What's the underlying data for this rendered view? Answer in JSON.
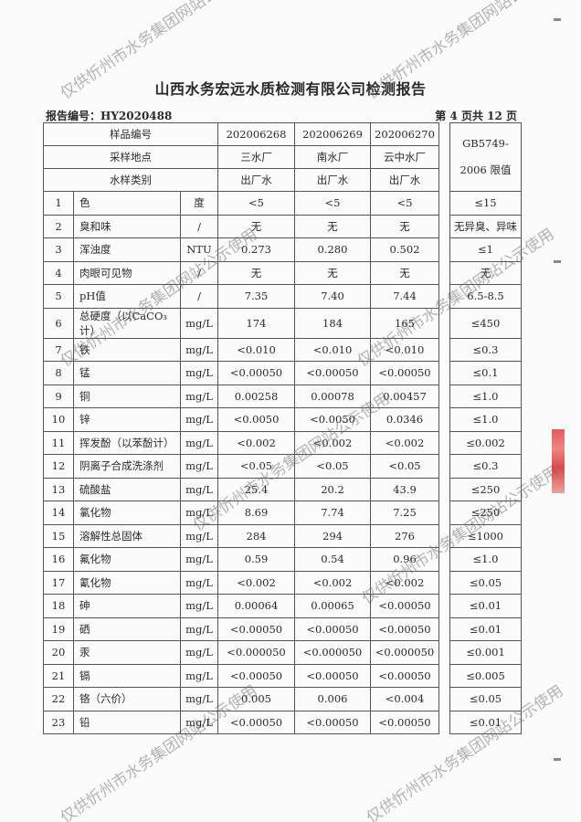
{
  "title": "山西水务宏远水质检测有限公司检测报告",
  "report_no": "报告编号：HY2020488",
  "page_info": "第 4 页共 12 页",
  "header": {
    "sample_no_label": "样品编号",
    "location_label": "采样地点",
    "type_label": "水样类别",
    "samples": [
      {
        "no": "202006268",
        "location": "三水厂",
        "type": "出厂水"
      },
      {
        "no": "202006269",
        "location": "南水厂",
        "type": "出厂水"
      },
      {
        "no": "202006270",
        "location": "云中水厂",
        "type": "出厂水"
      }
    ],
    "limit_label_1": "GB5749-",
    "limit_label_2": "2006 限值"
  },
  "rows": [
    {
      "n": "1",
      "name": "色",
      "unit": "度",
      "v": [
        "<5",
        "<5",
        "<5"
      ],
      "limit": "≤15"
    },
    {
      "n": "2",
      "name": "臭和味",
      "unit": "/",
      "v": [
        "无",
        "无",
        "无"
      ],
      "limit": "无异臭、异味"
    },
    {
      "n": "3",
      "name": "浑浊度",
      "unit": "NTU",
      "v": [
        "0.273",
        "0.280",
        "0.502"
      ],
      "limit": "≤1"
    },
    {
      "n": "4",
      "name": "肉眼可见物",
      "unit": "/",
      "v": [
        "无",
        "无",
        "无"
      ],
      "limit": "无"
    },
    {
      "n": "5",
      "name": "pH值",
      "unit": "/",
      "v": [
        "7.35",
        "7.40",
        "7.44"
      ],
      "limit": "6.5-8.5"
    },
    {
      "n": "6",
      "name": "总硬度（以CaCO₃计）",
      "unit": "mg/L",
      "v": [
        "174",
        "184",
        "165"
      ],
      "limit": "≤450"
    },
    {
      "n": "7",
      "name": "铁",
      "unit": "mg/L",
      "v": [
        "<0.010",
        "<0.010",
        "<0.010"
      ],
      "limit": "≤0.3"
    },
    {
      "n": "8",
      "name": "锰",
      "unit": "mg/L",
      "v": [
        "<0.00050",
        "<0.00050",
        "<0.00050"
      ],
      "limit": "≤0.1"
    },
    {
      "n": "9",
      "name": "铜",
      "unit": "mg/L",
      "v": [
        "0.00258",
        "0.00078",
        "0.00457"
      ],
      "limit": "≤1.0"
    },
    {
      "n": "10",
      "name": "锌",
      "unit": "mg/L",
      "v": [
        "<0.0050",
        "<0.0050",
        "0.0346"
      ],
      "limit": "≤1.0"
    },
    {
      "n": "11",
      "name": "挥发酚（以苯酚计）",
      "unit": "mg/L",
      "v": [
        "<0.002",
        "<0.002",
        "<0.002"
      ],
      "limit": "≤0.002"
    },
    {
      "n": "12",
      "name": "阴离子合成洗涤剂",
      "unit": "mg/L",
      "v": [
        "<0.05",
        "<0.05",
        "<0.05"
      ],
      "limit": "≤0.3"
    },
    {
      "n": "13",
      "name": "硫酸盐",
      "unit": "mg/L",
      "v": [
        "25.4",
        "20.2",
        "43.9"
      ],
      "limit": "≤250"
    },
    {
      "n": "14",
      "name": "氯化物",
      "unit": "mg/L",
      "v": [
        "8.69",
        "7.74",
        "7.25"
      ],
      "limit": "≤250"
    },
    {
      "n": "15",
      "name": "溶解性总固体",
      "unit": "mg/L",
      "v": [
        "284",
        "294",
        "276"
      ],
      "limit": "≤1000"
    },
    {
      "n": "16",
      "name": "氟化物",
      "unit": "mg/L",
      "v": [
        "0.59",
        "0.54",
        "0.96"
      ],
      "limit": "≤1.0"
    },
    {
      "n": "17",
      "name": "氰化物",
      "unit": "mg/L",
      "v": [
        "<0.002",
        "<0.002",
        "<0.002"
      ],
      "limit": "≤0.05"
    },
    {
      "n": "18",
      "name": "砷",
      "unit": "mg/L",
      "v": [
        "0.00064",
        "0.00065",
        "<0.00050"
      ],
      "limit": "≤0.01"
    },
    {
      "n": "19",
      "name": "硒",
      "unit": "mg/L",
      "v": [
        "<0.00050",
        "<0.00050",
        "<0.00050"
      ],
      "limit": "≤0.01"
    },
    {
      "n": "20",
      "name": "汞",
      "unit": "mg/L",
      "v": [
        "<0.000050",
        "<0.000050",
        "<0.000050"
      ],
      "limit": "≤0.001"
    },
    {
      "n": "21",
      "name": "镉",
      "unit": "mg/L",
      "v": [
        "<0.00050",
        "<0.00050",
        "<0.00050"
      ],
      "limit": "≤0.005"
    },
    {
      "n": "22",
      "name": "铬（六价）",
      "unit": "mg/L",
      "v": [
        "0.005",
        "0.006",
        "<0.004"
      ],
      "limit": "≤0.05"
    },
    {
      "n": "23",
      "name": "铅",
      "unit": "mg/L",
      "v": [
        "<0.00050",
        "<0.00050",
        "<0.00050"
      ],
      "limit": "≤0.01"
    }
  ],
  "watermark": "仅供忻州市水务集团网站公示使用"
}
